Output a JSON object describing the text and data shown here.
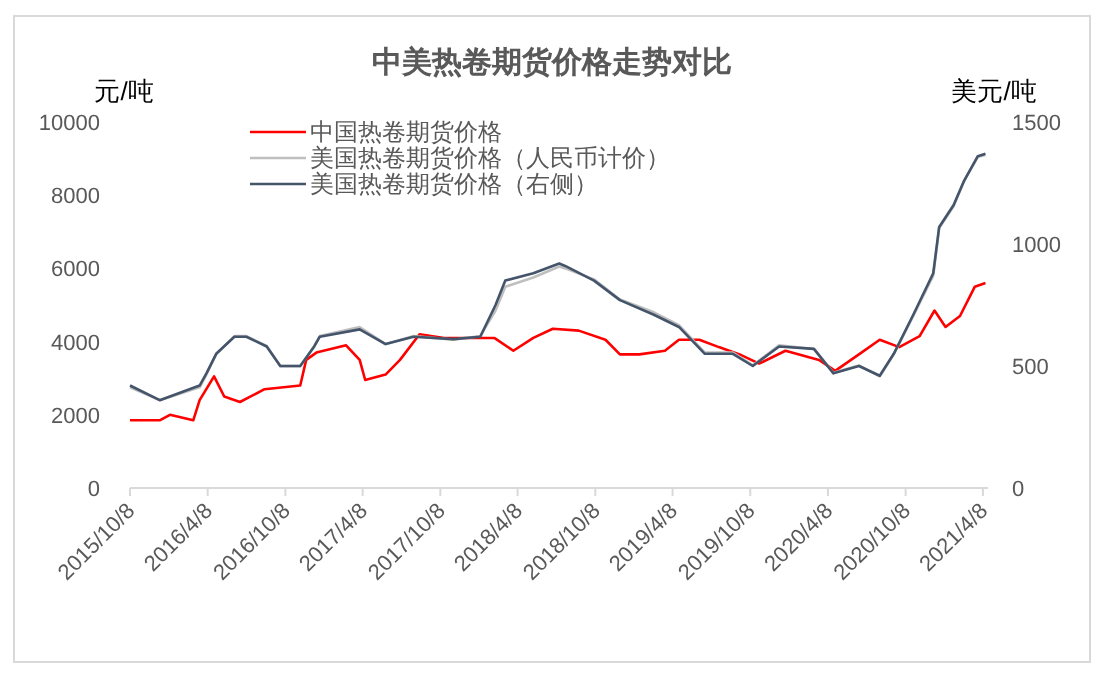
{
  "chart_data": {
    "type": "line",
    "title": "中美热卷期货价格走势对比",
    "ylabel": "元/吨",
    "y2label": "美元/吨",
    "legend": "top",
    "xlim": [
      "2015-10-08",
      "2021-04-20"
    ],
    "xticks": [
      {
        "value": "2015-10-08",
        "label": "2015/10/8"
      },
      {
        "value": "2016-04-08",
        "label": "2016/4/8"
      },
      {
        "value": "2016-10-08",
        "label": "2016/10/8"
      },
      {
        "value": "2017-04-08",
        "label": "2017/4/8"
      },
      {
        "value": "2017-10-08",
        "label": "2017/10/8"
      },
      {
        "value": "2018-04-08",
        "label": "2018/4/8"
      },
      {
        "value": "2018-10-08",
        "label": "2018/10/8"
      },
      {
        "value": "2019-04-08",
        "label": "2019/4/8"
      },
      {
        "value": "2019-10-08",
        "label": "2019/10/8"
      },
      {
        "value": "2020-04-08",
        "label": "2020/4/8"
      },
      {
        "value": "2020-10-08",
        "label": "2020/10/8"
      },
      {
        "value": "2021-04-08",
        "label": "2021/4/8"
      }
    ],
    "ylim": [
      0,
      10000
    ],
    "yticks": [
      0,
      2000,
      4000,
      6000,
      8000,
      10000
    ],
    "y2lim": [
      0,
      1500
    ],
    "y2ticks": [
      0,
      500,
      1000,
      1500
    ],
    "series": [
      {
        "name": "中国热卷期货价格",
        "type": "line",
        "color": "#ff0000",
        "x": [
          "2015-10-08",
          "2015-12-17",
          "2016-01-10",
          "2016-03-05",
          "2016-03-20",
          "2016-04-23",
          "2016-05-17",
          "2016-06-23",
          "2016-08-20",
          "2016-11-12",
          "2016-11-26",
          "2016-12-20",
          "2017-02-28",
          "2017-04-01",
          "2017-04-14",
          "2017-06-01",
          "2017-07-05",
          "2017-08-20",
          "2017-10-17",
          "2017-12-08",
          "2018-02-12",
          "2018-03-29",
          "2018-05-15",
          "2018-06-30",
          "2018-08-30",
          "2018-11-01",
          "2018-12-05",
          "2019-01-20",
          "2019-03-21",
          "2019-04-23",
          "2019-06-10",
          "2019-07-26",
          "2019-09-13",
          "2019-10-29",
          "2019-12-30",
          "2020-03-18",
          "2020-04-25",
          "2020-06-20",
          "2020-08-08",
          "2020-09-23",
          "2020-11-10",
          "2020-12-15",
          "2021-01-10",
          "2021-02-13",
          "2021-03-20",
          "2021-04-14"
        ],
        "values": [
          1850,
          1850,
          2000,
          1850,
          2400,
          3050,
          2500,
          2350,
          2700,
          2800,
          3500,
          3700,
          3900,
          3500,
          2950,
          3100,
          3500,
          4200,
          4100,
          4100,
          4100,
          3750,
          4100,
          4350,
          4300,
          4050,
          3650,
          3650,
          3750,
          4050,
          4050,
          3850,
          3650,
          3400,
          3750,
          3500,
          3200,
          3650,
          4050,
          3850,
          4150,
          4850,
          4400,
          4700,
          5500,
          5600
        ]
      },
      {
        "name": "美国热卷期货价格（人民币计价）",
        "type": "line",
        "color": "#bfbfbf",
        "x": [
          "2015-10-08",
          "2015-12-17",
          "2016-03-20",
          "2016-04-05",
          "2016-04-28",
          "2016-06-10",
          "2016-07-08",
          "2016-08-25",
          "2016-09-26",
          "2016-11-12",
          "2016-12-15",
          "2016-12-28",
          "2017-04-01",
          "2017-06-01",
          "2017-08-06",
          "2017-11-08",
          "2018-01-10",
          "2018-02-15",
          "2018-03-10",
          "2018-05-15",
          "2018-07-15",
          "2018-07-29",
          "2018-10-05",
          "2018-12-05",
          "2019-02-23",
          "2019-04-23",
          "2019-06-23",
          "2019-08-28",
          "2019-10-14",
          "2019-12-15",
          "2020-03-06",
          "2020-04-21",
          "2020-06-20",
          "2020-08-08",
          "2020-09-10",
          "2020-10-26",
          "2020-12-12",
          "2020-12-26",
          "2021-01-29",
          "2021-02-23",
          "2021-03-27",
          "2021-04-14"
        ],
        "values": [
          2750,
          2400,
          2750,
          3100,
          3650,
          4150,
          4150,
          3880,
          3330,
          3330,
          3880,
          4150,
          4400,
          3930,
          4150,
          4050,
          4150,
          4850,
          5500,
          5750,
          6050,
          6000,
          5700,
          5150,
          4800,
          4450,
          3700,
          3700,
          3350,
          3900,
          3800,
          3150,
          3350,
          3050,
          3650,
          4700,
          5800,
          7100,
          7700,
          8400,
          9050,
          9100
        ]
      },
      {
        "name": "美国热卷期货价格（右侧）",
        "type": "line",
        "axis": "y2",
        "color": "#44546a",
        "x": [
          "2015-10-08",
          "2015-12-17",
          "2016-03-20",
          "2016-04-05",
          "2016-04-28",
          "2016-06-10",
          "2016-07-08",
          "2016-08-25",
          "2016-09-26",
          "2016-11-12",
          "2016-12-15",
          "2016-12-28",
          "2017-04-01",
          "2017-06-01",
          "2017-08-06",
          "2017-11-08",
          "2018-01-10",
          "2018-02-15",
          "2018-03-10",
          "2018-05-15",
          "2018-07-15",
          "2018-07-29",
          "2018-10-05",
          "2018-12-05",
          "2019-02-23",
          "2019-04-23",
          "2019-06-23",
          "2019-08-28",
          "2019-10-14",
          "2019-12-15",
          "2020-03-06",
          "2020-04-21",
          "2020-06-20",
          "2020-08-08",
          "2020-09-10",
          "2020-10-26",
          "2020-12-12",
          "2020-12-26",
          "2021-01-29",
          "2021-02-23",
          "2021-03-27",
          "2021-04-14"
        ],
        "values": [
          420,
          360,
          420,
          470,
          550,
          620,
          620,
          580,
          500,
          500,
          580,
          620,
          650,
          590,
          620,
          610,
          620,
          750,
          850,
          880,
          920,
          910,
          850,
          770,
          710,
          660,
          550,
          550,
          500,
          580,
          570,
          470,
          500,
          460,
          550,
          710,
          880,
          1070,
          1160,
          1260,
          1360,
          1370
        ]
      }
    ]
  }
}
